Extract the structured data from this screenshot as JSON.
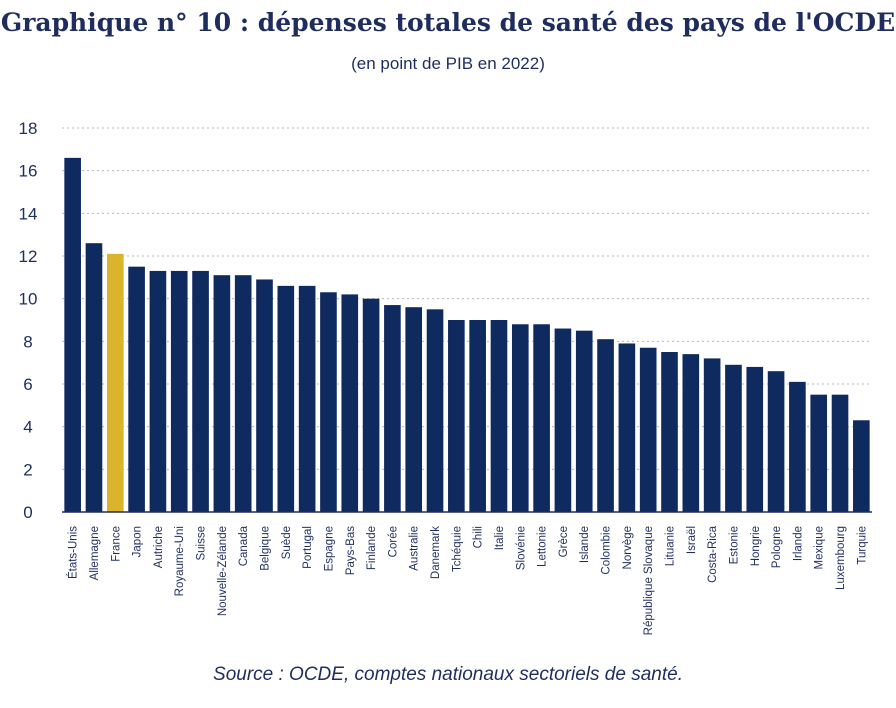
{
  "chart_data": {
    "type": "bar",
    "title": "Graphique n° 10 : dépenses totales de santé des pays de l'OCDE",
    "subtitle": "(en point de PIB en 2022)",
    "source": "Source : OCDE, comptes nationaux sectoriels de santé.",
    "categories": [
      "États-Unis",
      "Allemagne",
      "France",
      "Japon",
      "Autriche",
      "Royaume-Uni",
      "Suisse",
      "Nouvelle-Zélande",
      "Canada",
      "Belgique",
      "Suède",
      "Portugal",
      "Espagne",
      "Pays-Bas",
      "Finlande",
      "Corée",
      "Australie",
      "Danemark",
      "Tchéquie",
      "Chili",
      "Italie",
      "Slovénie",
      "Lettonie",
      "Grèce",
      "Islande",
      "Colombie",
      "Norvège",
      "République Slovaque",
      "Lituanie",
      "Israël",
      "Costa-Rica",
      "Estonie",
      "Hongrie",
      "Pologne",
      "Irlande",
      "Mexique",
      "Luxembourg",
      "Turquie"
    ],
    "values": [
      16.6,
      12.6,
      12.1,
      11.5,
      11.3,
      11.3,
      11.3,
      11.1,
      11.1,
      10.9,
      10.6,
      10.6,
      10.3,
      10.2,
      10.0,
      9.7,
      9.6,
      9.5,
      9.0,
      9.0,
      9.0,
      8.8,
      8.8,
      8.6,
      8.5,
      8.1,
      7.9,
      7.7,
      7.5,
      7.4,
      7.2,
      6.9,
      6.8,
      6.6,
      6.1,
      5.5,
      5.5,
      4.3
    ],
    "highlight": "France",
    "ylim": [
      0,
      18
    ],
    "yticks": [
      0,
      2,
      4,
      6,
      8,
      10,
      12,
      14,
      16,
      18
    ],
    "grid": true,
    "colors": {
      "bar": "#0f2a5e",
      "highlight": "#dab52b",
      "text": "#1f2d5e",
      "grid": "#b8b8b8"
    }
  }
}
